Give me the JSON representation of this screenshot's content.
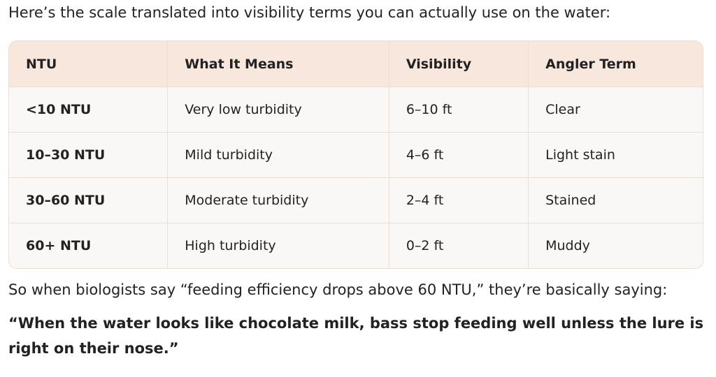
{
  "intro": "Here’s the scale translated into visibility terms you can actually use on the water:",
  "table": {
    "header": [
      "NTU",
      "What It Means",
      "Visibility",
      "Angler Term"
    ],
    "rows": [
      [
        "<10 NTU",
        "Very low turbidity",
        "6–10 ft",
        "Clear"
      ],
      [
        "10–30 NTU",
        "Mild turbidity",
        "4–6 ft",
        "Light stain"
      ],
      [
        "30–60 NTU",
        "Moderate turbidity",
        "2–4 ft",
        "Stained"
      ],
      [
        "60+ NTU",
        "High turbidity",
        "0–2 ft",
        "Muddy"
      ]
    ]
  },
  "paragraph": "So when biologists say “feeding efficiency drops above 60 NTU,” they’re basically saying:",
  "quote": "“When the water looks like chocolate milk, bass stop feeding well unless the lure is right on their nose.”"
}
